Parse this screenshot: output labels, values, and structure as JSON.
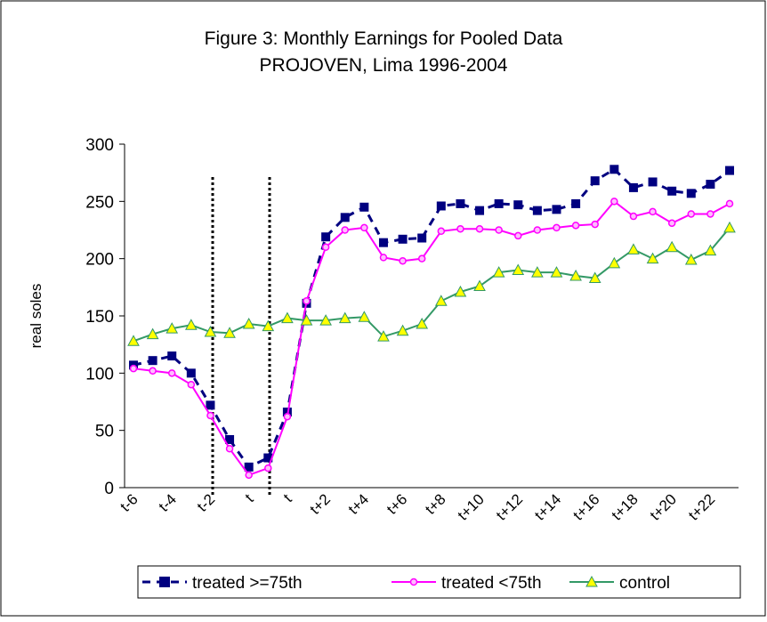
{
  "chart_data": {
    "type": "line",
    "title": "Figure 3: Monthly Earnings for Pooled Data",
    "subtitle": "PROJOVEN,  Lima 1996-2004",
    "y_label": "real soles",
    "categories": [
      "t-6",
      null,
      "t-4",
      null,
      "t-2",
      null,
      "t",
      null,
      "t",
      null,
      "t+2",
      null,
      "t+4",
      null,
      "t+6",
      null,
      "t+8",
      null,
      "t+10",
      null,
      "t+12",
      null,
      "t+14",
      null,
      "t+16",
      null,
      "t+18",
      null,
      "t+20",
      null,
      "t+22",
      null
    ],
    "series": [
      {
        "name": "treated >=75th",
        "color": "#000080",
        "marker": "square",
        "dash": true,
        "values": [
          107,
          111,
          115,
          100,
          72,
          42,
          18,
          26,
          66,
          161,
          219,
          236,
          245,
          214,
          217,
          218,
          246,
          248,
          242,
          248,
          247,
          242,
          243,
          248,
          268,
          278,
          262,
          267,
          259,
          257,
          265,
          277
        ]
      },
      {
        "name": "treated <75th",
        "color": "#ff00ff",
        "marker": "circle",
        "dash": false,
        "values": [
          104,
          102,
          100,
          90,
          63,
          34,
          11,
          17,
          62,
          163,
          210,
          225,
          227,
          201,
          198,
          200,
          224,
          226,
          226,
          225,
          220,
          225,
          227,
          229,
          230,
          250,
          237,
          241,
          231,
          239,
          239,
          248
        ]
      },
      {
        "name": "control",
        "color": "#339966",
        "marker": "triangle",
        "marker_fill": "#ffff00",
        "dash": false,
        "values": [
          128,
          134,
          139,
          142,
          136,
          135,
          143,
          141,
          148,
          146,
          146,
          148,
          149,
          132,
          137,
          143,
          163,
          171,
          176,
          188,
          190,
          188,
          188,
          185,
          183,
          196,
          208,
          200,
          210,
          199,
          207,
          227
        ]
      }
    ],
    "ylim": [
      0,
      300
    ],
    "yticks": [
      0,
      50,
      100,
      150,
      200,
      250,
      300
    ],
    "grid": false
  }
}
